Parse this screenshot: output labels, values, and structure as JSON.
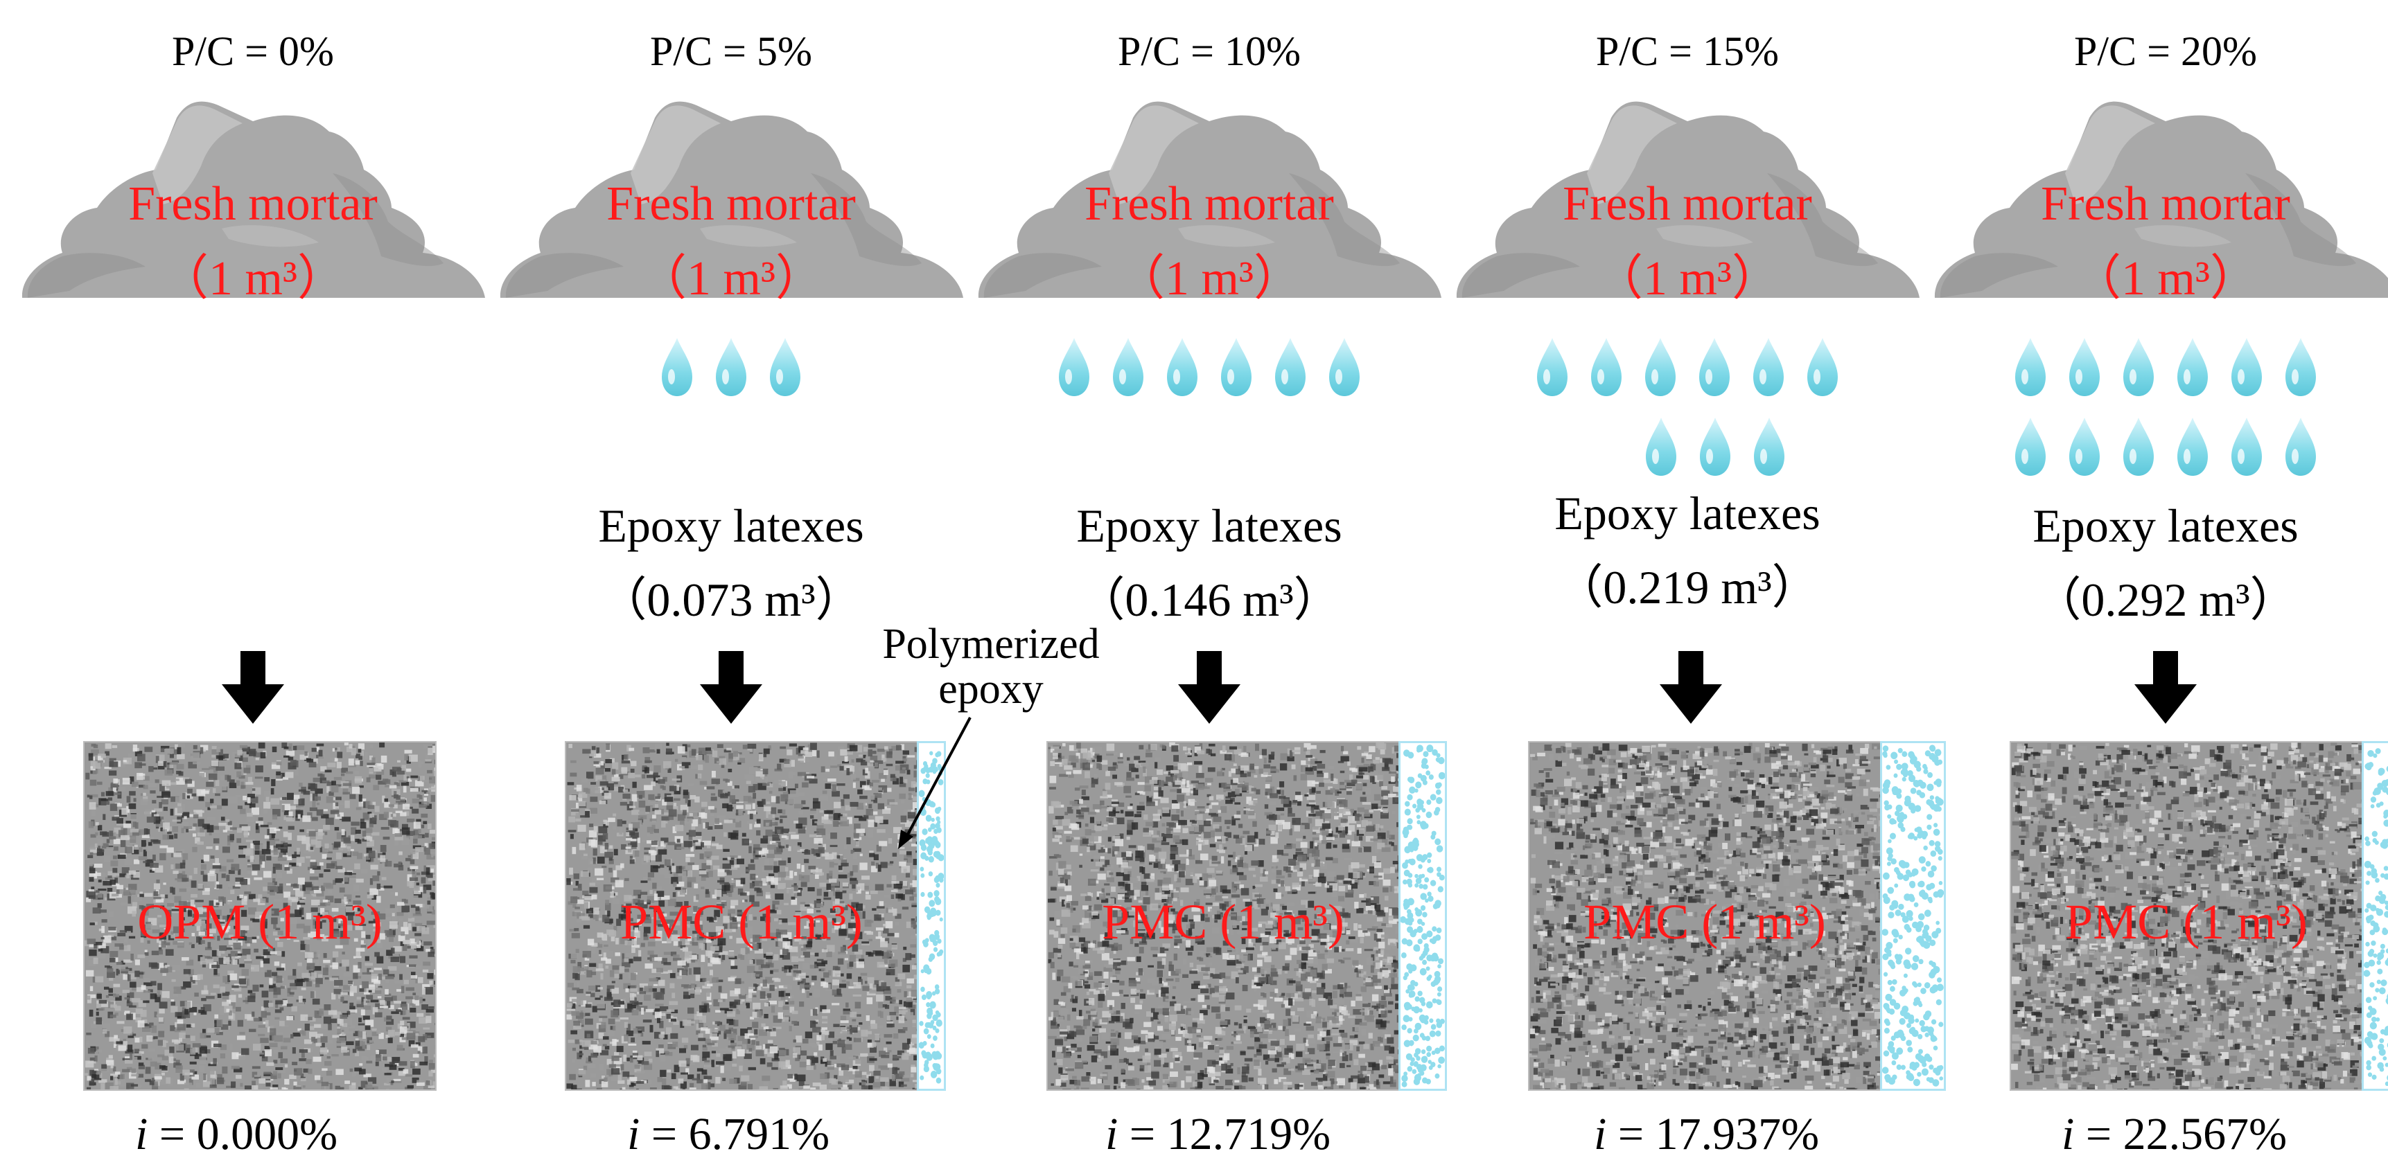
{
  "panels": [
    {
      "pc": "P/C = 0%",
      "cloud_line1": "Fresh mortar",
      "cloud_line2": "（1 m³）",
      "drops": 0,
      "epoxy_line1": "",
      "epoxy_line2": "",
      "block_label": "OPM (1 m³)",
      "film_fraction": 0,
      "i_prefix": "i",
      "i_value": " = 0.000%"
    },
    {
      "pc": "P/C = 5%",
      "cloud_line1": "Fresh mortar",
      "cloud_line2": "（1 m³）",
      "drops": 3,
      "epoxy_line1": "Epoxy latexes",
      "epoxy_line2": "（0.073 m³）",
      "block_label": "PMC (1 m³)",
      "film_fraction": 0.068,
      "i_prefix": "i",
      "i_value": " = 6.791%"
    },
    {
      "pc": "P/C = 10%",
      "cloud_line1": "Fresh mortar",
      "cloud_line2": "（1 m³）",
      "drops": 6,
      "epoxy_line1": "Epoxy latexes",
      "epoxy_line2": "（0.146 m³）",
      "block_label": "PMC (1 m³)",
      "film_fraction": 0.127,
      "i_prefix": "i",
      "i_value": " = 12.719%"
    },
    {
      "pc": "P/C = 15%",
      "cloud_line1": "Fresh mortar",
      "cloud_line2": "（1 m³）",
      "drops": 9,
      "epoxy_line1": "Epoxy latexes",
      "epoxy_line2": "（0.219 m³）",
      "block_label": "PMC (1 m³)",
      "film_fraction": 0.179,
      "i_prefix": "i",
      "i_value": " = 17.937%"
    },
    {
      "pc": "P/C = 20%",
      "cloud_line1": "Fresh mortar",
      "cloud_line2": "（1 m³）",
      "drops": 12,
      "epoxy_line1": "Epoxy latexes",
      "epoxy_line2": "（0.292 m³）",
      "block_label": "PMC (1 m³)",
      "film_fraction": 0.226,
      "i_prefix": "i",
      "i_value": " = 22.567%"
    }
  ],
  "annotation": {
    "line1": "Polymerized",
    "line2": "epoxy"
  },
  "colors": {
    "cloud": "#a9a9a9",
    "cloud_dark": "#8f8f8f",
    "cloud_light": "#c4c4c4",
    "label_red": "#ff1a1a",
    "drop": "#7fd9e8",
    "film_border": "#aee3f3",
    "arrow": "#000000"
  },
  "icons": {
    "cloud": "mortar-cloud-icon",
    "drop": "water-drop-icon",
    "arrow": "down-arrow-icon"
  }
}
